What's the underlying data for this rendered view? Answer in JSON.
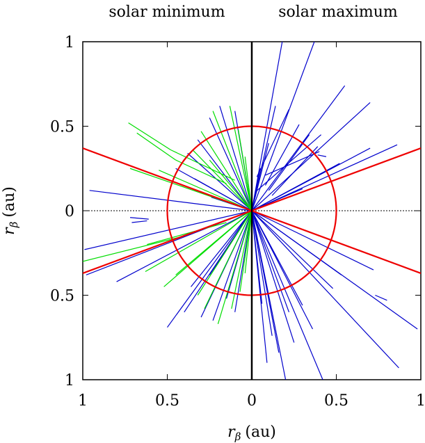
{
  "chart_data": {
    "type": "line",
    "title": "",
    "panel_labels": {
      "left": "solar minimum",
      "right": "solar maximum"
    },
    "xlabel": "r",
    "xlabel_sub": "β",
    "xlabel_unit": "(au)",
    "ylabel": "r",
    "ylabel_sub": "β",
    "ylabel_unit": "(au)",
    "xlim": [
      -1,
      1
    ],
    "ylim": [
      -1,
      1
    ],
    "x_ticks": [
      {
        "value": -1,
        "label": "1"
      },
      {
        "value": -0.5,
        "label": "0.5"
      },
      {
        "value": 0,
        "label": "0"
      },
      {
        "value": 0.5,
        "label": "0.5"
      },
      {
        "value": 1,
        "label": "1"
      }
    ],
    "y_ticks": [
      {
        "value": 1,
        "label": "1"
      },
      {
        "value": 0.5,
        "label": "0.5"
      },
      {
        "value": 0,
        "label": "0"
      },
      {
        "value": -0.5,
        "label": "0.5"
      },
      {
        "value": -1,
        "label": "1"
      }
    ],
    "circle_radius": 0.5,
    "boundary_lines": [
      {
        "name": "upper",
        "points": [
          [
            -1,
            0.37
          ],
          [
            1,
            -0.37
          ]
        ]
      },
      {
        "name": "lower",
        "points": [
          [
            -1,
            -0.37
          ],
          [
            1,
            0.37
          ]
        ]
      }
    ],
    "colors": {
      "blue": "#0000cc",
      "green": "#00dd00",
      "red": "#ee0000",
      "axis": "#000000"
    },
    "series": [
      {
        "color": "blue",
        "segments": [
          [
            [
              0.0,
              0.0
            ],
            [
              0.18,
              1.0
            ]
          ],
          [
            [
              0.0,
              0.0
            ],
            [
              0.37,
              1.0
            ]
          ],
          [
            [
              0.0,
              0.0
            ],
            [
              0.55,
              0.74
            ]
          ],
          [
            [
              0.0,
              0.0
            ],
            [
              0.7,
              0.64
            ]
          ],
          [
            [
              0.0,
              0.0
            ],
            [
              0.86,
              0.39
            ]
          ],
          [
            [
              0.0,
              0.0
            ],
            [
              0.7,
              0.37
            ]
          ],
          [
            [
              0.0,
              0.0
            ],
            [
              0.52,
              0.28
            ]
          ],
          [
            [
              0.0,
              0.0
            ],
            [
              0.3,
              0.13
            ]
          ],
          [
            [
              0.0,
              0.0
            ],
            [
              0.1,
              0.4
            ]
          ],
          [
            [
              0.0,
              0.0
            ],
            [
              0.14,
              0.62
            ]
          ],
          [
            [
              0.0,
              0.0
            ],
            [
              0.05,
              0.25
            ]
          ],
          [
            [
              0.22,
              0.6
            ],
            [
              0.03,
              0.2
            ]
          ],
          [
            [
              0.28,
              0.51
            ],
            [
              0.08,
              0.15
            ]
          ],
          [
            [
              0.34,
              0.45
            ],
            [
              0.1,
              0.12
            ]
          ],
          [
            [
              0.39,
              0.38
            ],
            [
              0.12,
              0.09
            ]
          ],
          [
            [
              0.4,
              0.35
            ],
            [
              0.08,
              0.21
            ]
          ],
          [
            [
              0.41,
              0.45
            ],
            [
              0.02,
              0.11
            ]
          ],
          [
            [
              0.44,
              0.32
            ],
            [
              0.39,
              0.33
            ]
          ],
          [
            [
              0.0,
              0.0
            ],
            [
              -0.19,
              0.62
            ]
          ],
          [
            [
              0.0,
              0.0
            ],
            [
              -0.1,
              0.59
            ]
          ],
          [
            [
              0.0,
              0.0
            ],
            [
              -0.25,
              0.55
            ]
          ],
          [
            [
              0.0,
              0.0
            ],
            [
              -0.32,
              0.42
            ]
          ],
          [
            [
              0.0,
              0.0
            ],
            [
              -0.38,
              0.34
            ]
          ],
          [
            [
              0.0,
              0.0
            ],
            [
              -0.45,
              0.25
            ]
          ],
          [
            [
              0.0,
              0.0
            ],
            [
              -0.34,
              0.19
            ]
          ],
          [
            [
              0.0,
              0.0
            ],
            [
              -0.24,
              0.08
            ]
          ],
          [
            [
              0.0,
              0.0
            ],
            [
              -0.96,
              0.12
            ]
          ],
          [
            [
              0.0,
              0.0
            ],
            [
              -0.99,
              -0.23
            ]
          ],
          [
            [
              0.0,
              0.0
            ],
            [
              -0.98,
              -0.38
            ]
          ],
          [
            [
              0.0,
              0.0
            ],
            [
              -0.8,
              -0.42
            ]
          ],
          [
            [
              0.0,
              0.0
            ],
            [
              -0.5,
              -0.69
            ]
          ],
          [
            [
              0.0,
              0.0
            ],
            [
              -0.4,
              -0.6
            ]
          ],
          [
            [
              0.0,
              0.0
            ],
            [
              -0.3,
              -0.63
            ]
          ],
          [
            [
              0.0,
              0.0
            ],
            [
              -0.23,
              -0.65
            ]
          ],
          [
            [
              0.0,
              0.0
            ],
            [
              -0.1,
              -0.6
            ]
          ],
          [
            [
              0.0,
              0.0
            ],
            [
              -0.15,
              -0.52
            ]
          ],
          [
            [
              0.0,
              0.0
            ],
            [
              -0.36,
              -0.45
            ]
          ],
          [
            [
              0.0,
              0.0
            ],
            [
              -0.25,
              -0.38
            ]
          ],
          [
            [
              0.0,
              0.0
            ],
            [
              0.06,
              -0.55
            ]
          ],
          [
            [
              0.0,
              0.0
            ],
            [
              0.12,
              -0.74
            ]
          ],
          [
            [
              0.0,
              0.0
            ],
            [
              0.16,
              -0.84
            ]
          ],
          [
            [
              0.0,
              0.0
            ],
            [
              0.25,
              -0.78
            ]
          ],
          [
            [
              0.0,
              0.0
            ],
            [
              0.42,
              -1.0
            ]
          ],
          [
            [
              0.0,
              0.0
            ],
            [
              0.36,
              -0.7
            ]
          ],
          [
            [
              0.0,
              0.0
            ],
            [
              0.3,
              -0.56
            ]
          ],
          [
            [
              0.0,
              0.0
            ],
            [
              0.87,
              -0.93
            ]
          ],
          [
            [
              0.0,
              0.0
            ],
            [
              0.98,
              -0.7
            ]
          ],
          [
            [
              0.0,
              0.0
            ],
            [
              0.48,
              -0.46
            ]
          ],
          [
            [
              0.0,
              0.0
            ],
            [
              0.53,
              -0.38
            ]
          ],
          [
            [
              0.0,
              0.0
            ],
            [
              0.72,
              -0.35
            ]
          ],
          [
            [
              0.0,
              0.0
            ],
            [
              0.22,
              -0.6
            ]
          ],
          [
            [
              0.0,
              0.0
            ],
            [
              0.09,
              -0.9
            ]
          ],
          [
            [
              0.0,
              0.0
            ],
            [
              0.2,
              -1.0
            ]
          ],
          [
            [
              0.73,
              -0.5
            ],
            [
              0.8,
              -0.53
            ]
          ],
          [
            [
              -0.72,
              -0.04
            ],
            [
              -0.61,
              -0.05
            ]
          ],
          [
            [
              -0.71,
              -0.07
            ],
            [
              -0.62,
              -0.06
            ]
          ]
        ]
      },
      {
        "color": "green",
        "segments": [
          [
            [
              -0.73,
              0.52
            ],
            [
              -0.48,
              0.36
            ]
          ],
          [
            [
              -0.48,
              0.36
            ],
            [
              -0.1,
              0.18
            ]
          ],
          [
            [
              -0.68,
              0.46
            ],
            [
              -0.45,
              0.3
            ]
          ],
          [
            [
              -0.45,
              0.3
            ],
            [
              -0.15,
              0.16
            ]
          ],
          [
            [
              0.0,
              0.0
            ],
            [
              -0.72,
              0.25
            ]
          ],
          [
            [
              0.0,
              0.0
            ],
            [
              -0.55,
              0.24
            ]
          ],
          [
            [
              0.0,
              0.0
            ],
            [
              -0.3,
              0.47
            ]
          ],
          [
            [
              0.0,
              0.0
            ],
            [
              -0.23,
              0.59
            ]
          ],
          [
            [
              0.0,
              0.0
            ],
            [
              -0.13,
              0.62
            ]
          ],
          [
            [
              0.0,
              0.0
            ],
            [
              -0.35,
              0.36
            ]
          ],
          [
            [
              0.0,
              0.0
            ],
            [
              -0.25,
              0.3
            ]
          ],
          [
            [
              -0.62,
              -0.2
            ],
            [
              -0.15,
              -0.07
            ]
          ],
          [
            [
              -1.0,
              -0.3
            ],
            [
              -0.4,
              -0.15
            ]
          ],
          [
            [
              0.0,
              0.0
            ],
            [
              -0.63,
              -0.36
            ]
          ],
          [
            [
              0.0,
              0.0
            ],
            [
              -0.45,
              -0.38
            ]
          ],
          [
            [
              0.0,
              0.0
            ],
            [
              -0.32,
              -0.5
            ]
          ],
          [
            [
              0.0,
              0.0
            ],
            [
              -0.2,
              -0.67
            ]
          ],
          [
            [
              0.0,
              0.0
            ],
            [
              -0.12,
              -0.58
            ]
          ],
          [
            [
              0.0,
              0.0
            ],
            [
              -0.07,
              -0.48
            ]
          ],
          [
            [
              0.0,
              0.0
            ],
            [
              -0.28,
              -0.58
            ]
          ],
          [
            [
              0.0,
              0.0
            ],
            [
              -0.52,
              -0.45
            ]
          ],
          [
            [
              0.0,
              0.0
            ],
            [
              -0.04,
              -0.37
            ]
          ],
          [
            [
              0.0,
              0.0
            ],
            [
              -0.08,
              0.48
            ]
          ],
          [
            [
              0.0,
              0.0
            ],
            [
              -0.04,
              0.32
            ]
          ]
        ]
      }
    ]
  }
}
